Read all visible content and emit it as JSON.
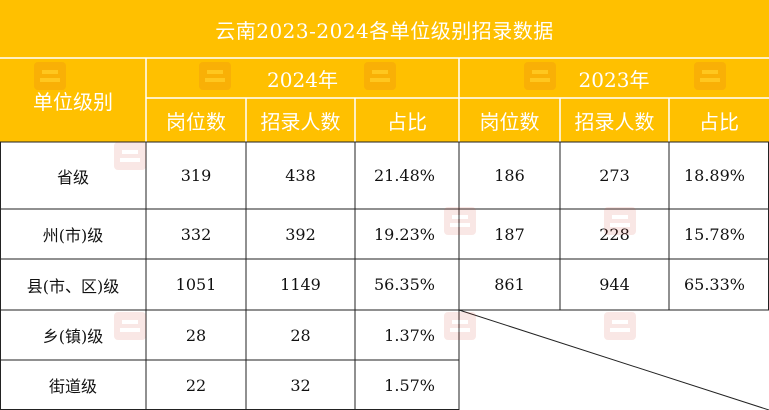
{
  "title": "云南2023-2024各单位级别招录数据",
  "header": {
    "row_label": "单位级别",
    "years": [
      "2024年",
      "2023年"
    ],
    "columns_2024": [
      "岗位数",
      "招录人数",
      "占比"
    ],
    "columns_2023": [
      "岗位数",
      "招录人数",
      "占比"
    ]
  },
  "rows": [
    {
      "level": "省级",
      "p2024": "319",
      "r2024": "438",
      "s2024": "21.48%",
      "p2023": "186",
      "r2023": "273",
      "s2023": "18.89%"
    },
    {
      "level": "州(市)级",
      "p2024": "332",
      "r2024": "392",
      "s2024": "19.23%",
      "p2023": "187",
      "r2023": "228",
      "s2023": "15.78%"
    },
    {
      "level": "县(市、区)级",
      "p2024": "1051",
      "r2024": "1149",
      "s2024": "56.35%",
      "p2023": "861",
      "r2023": "944",
      "s2023": "65.33%"
    },
    {
      "level": "乡(镇)级",
      "p2024": "28",
      "r2024": "28",
      "s2024": "1.37%"
    },
    {
      "level": "街道级",
      "p2024": "22",
      "r2024": "32",
      "s2024": "1.57%"
    }
  ],
  "colors": {
    "header": "#FFC000",
    "header_text": "#FFFFFF",
    "grid": "#222222"
  }
}
